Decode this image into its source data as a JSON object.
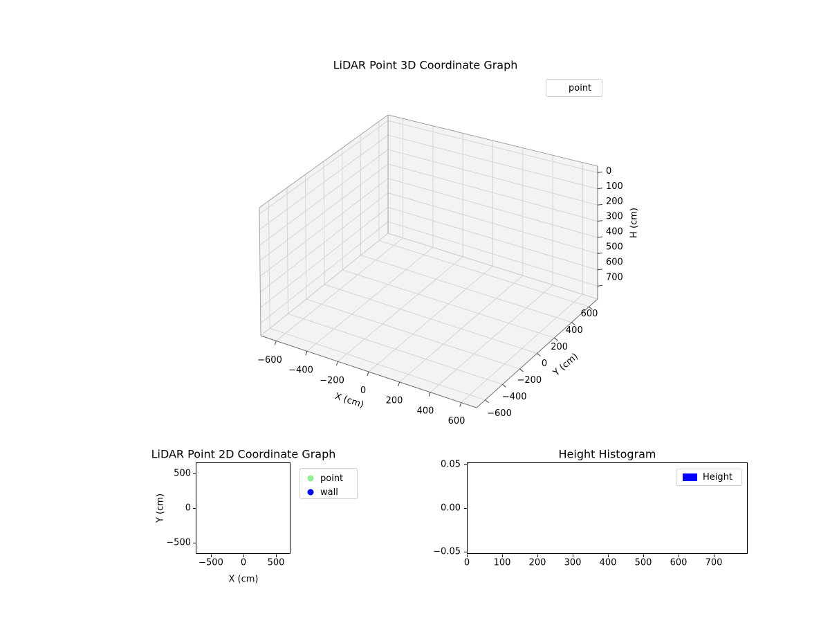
{
  "figure": {
    "background": "#ffffff"
  },
  "chart_data": [
    {
      "type": "scatter3d",
      "title": "LiDAR Point 3D Coordinate Graph",
      "xlabel": "X (cm)",
      "ylabel": "Y (cm)",
      "zlabel": "H (cm)",
      "xlim": [
        -700,
        700
      ],
      "ylim": [
        -700,
        700
      ],
      "zlim": [
        0,
        700
      ],
      "z_axis_inverted": true,
      "grid": true,
      "xticks": [
        "−600",
        "−400",
        "−200",
        "0",
        "200",
        "400",
        "600"
      ],
      "yticks": [
        "−600",
        "−400",
        "−200",
        "0",
        "200",
        "400",
        "600"
      ],
      "zticks": [
        "0",
        "100",
        "200",
        "300",
        "400",
        "500",
        "600",
        "700"
      ],
      "legend": {
        "position": "upper right",
        "entries": [
          {
            "label": "point",
            "marker": "invisible"
          }
        ]
      },
      "points": []
    },
    {
      "type": "scatter",
      "title": "LiDAR Point 2D Coordinate Graph",
      "xlabel": "X (cm)",
      "ylabel": "Y (cm)",
      "xlim": [
        -700,
        700
      ],
      "ylim": [
        -700,
        700
      ],
      "grid": false,
      "xticks": [
        "−500",
        "0",
        "500"
      ],
      "yticks": [
        "500",
        "0",
        "−500"
      ],
      "legend": {
        "position": "outside right",
        "entries": [
          {
            "label": "point",
            "color": "#90ee90",
            "marker": "circle"
          },
          {
            "label": "wall",
            "color": "#0000ff",
            "marker": "circle"
          }
        ]
      },
      "points": []
    },
    {
      "type": "histogram",
      "title": "Height Histogram",
      "xlim": [
        0,
        795
      ],
      "ylim": [
        -0.05,
        0.05
      ],
      "grid": false,
      "xticks": [
        "0",
        "100",
        "200",
        "300",
        "400",
        "500",
        "600",
        "700"
      ],
      "yticks": [
        "0.05",
        "0.00",
        "−0.05"
      ],
      "legend": {
        "position": "upper right",
        "entries": [
          {
            "label": "Height",
            "color": "#0000ff",
            "marker": "rect"
          }
        ]
      },
      "values": []
    }
  ]
}
